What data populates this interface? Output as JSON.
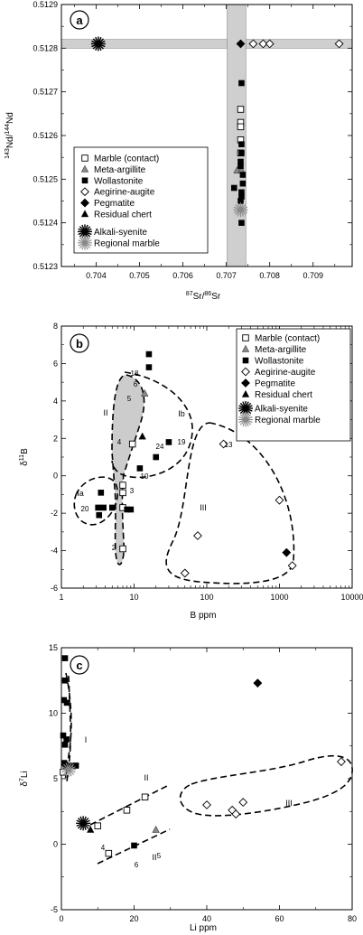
{
  "legend_labels": {
    "marble": "Marble (contact)",
    "meta_argillite": "Meta-argillite",
    "wollastonite": "Wollastonite",
    "aegirine_augite": "Aegirine-augite",
    "pegmatite": "Pegmatite",
    "residual_chert": "Residual chert",
    "alkali_syenite": "Alkali-syenite",
    "regional_marble": "Regional marble"
  },
  "chart_data": [
    {
      "type": "scatter",
      "panel": "a",
      "xlabel": "87Sr/86Sr",
      "ylabel": "143Nd/144Nd",
      "xlim": [
        0.7032,
        0.7099
      ],
      "ylim": [
        0.5123,
        0.5129
      ],
      "xticks": [
        "0.704",
        "0.705",
        "0.706",
        "0.707",
        "0.708",
        "0.709"
      ],
      "yticks": [
        "0.5123",
        "0.5124",
        "0.5125",
        "0.5126",
        "0.5127",
        "0.5128",
        "0.5129"
      ],
      "legend": "inside-left",
      "bands": [
        {
          "orientation": "horizontal",
          "from": 0.5128,
          "to": 0.51282
        },
        {
          "orientation": "vertical",
          "from": 0.70702,
          "to": 0.70745
        }
      ],
      "series": [
        {
          "name": "Marble (contact)",
          "marker": "open-square",
          "points": [
            [
              0.70733,
              0.51266
            ],
            [
              0.70733,
              0.51263
            ],
            [
              0.70733,
              0.51262
            ],
            [
              0.70733,
              0.51259
            ],
            [
              0.70733,
              0.51256
            ]
          ]
        },
        {
          "name": "Meta-argillite",
          "marker": "gray-triangle",
          "points": [
            [
              0.70725,
              0.51252
            ],
            [
              0.70735,
              0.51252
            ]
          ]
        },
        {
          "name": "Wollastonite",
          "marker": "filled-square",
          "points": [
            [
              0.70735,
              0.51272
            ],
            [
              0.70735,
              0.51258
            ],
            [
              0.70735,
              0.51256
            ],
            [
              0.70733,
              0.51254
            ],
            [
              0.70733,
              0.51253
            ],
            [
              0.70718,
              0.51248
            ],
            [
              0.70738,
              0.51251
            ],
            [
              0.70738,
              0.51249
            ],
            [
              0.70735,
              0.51247
            ],
            [
              0.70735,
              0.51246
            ],
            [
              0.70733,
              0.51245
            ],
            [
              0.70735,
              0.5124
            ]
          ]
        },
        {
          "name": "Aegirine-augite",
          "marker": "open-diamond",
          "points": [
            [
              0.70762,
              0.51281
            ],
            [
              0.70785,
              0.51281
            ],
            [
              0.708,
              0.51281
            ],
            [
              0.7096,
              0.51281
            ]
          ]
        },
        {
          "name": "Pegmatite",
          "marker": "filled-diamond",
          "points": [
            [
              0.70733,
              0.51281
            ]
          ]
        },
        {
          "name": "Alkali-syenite",
          "marker": "star",
          "points": [
            [
              0.70405,
              0.51281
            ]
          ]
        },
        {
          "name": "Regional marble",
          "marker": "gray-star",
          "points": [
            [
              0.70733,
              0.51243
            ]
          ]
        }
      ]
    },
    {
      "type": "scatter",
      "panel": "b",
      "xlabel": "B ppm",
      "ylabel": "δ11B",
      "xscale": "log",
      "xlim": [
        1,
        10000
      ],
      "ylim": [
        -6,
        8
      ],
      "xticks": [
        "1",
        "10",
        "100",
        "1000",
        "10000"
      ],
      "yticks": [
        "-6",
        "-4",
        "-2",
        "0",
        "2",
        "4",
        "6",
        "8"
      ],
      "legend": "top-right",
      "region_labels": [
        "Ia",
        "Ib",
        "II",
        "III"
      ],
      "point_labels": [
        "18",
        "6",
        "5",
        "4",
        "24",
        "19",
        "13",
        "10",
        "3",
        "20",
        "2"
      ],
      "series": [
        {
          "name": "Marble (contact)",
          "marker": "open-square",
          "points": [
            [
              9.5,
              1.7
            ],
            [
              7,
              -0.5
            ],
            [
              7,
              -0.9
            ],
            [
              7,
              -1.7
            ],
            [
              7,
              -3.9
            ]
          ]
        },
        {
          "name": "Meta-argillite",
          "marker": "gray-triangle",
          "points": [
            [
              14,
              4.4
            ]
          ]
        },
        {
          "name": "Wollastonite",
          "marker": "filled-square",
          "points": [
            [
              16,
              6.5
            ],
            [
              16,
              5.8
            ],
            [
              20,
              1.0
            ],
            [
              12,
              0.4
            ],
            [
              30,
              1.8
            ],
            [
              3.5,
              -0.9
            ],
            [
              3.8,
              -1.7
            ],
            [
              3.2,
              -1.7
            ],
            [
              5,
              -1.7
            ],
            [
              3.3,
              -2.1
            ],
            [
              8,
              -1.8
            ],
            [
              9,
              -1.8
            ]
          ]
        },
        {
          "name": "Aegirine-augite",
          "marker": "open-diamond",
          "points": [
            [
              170,
              1.7
            ],
            [
              1000,
              -1.3
            ],
            [
              75,
              -3.2
            ],
            [
              50,
              -5.2
            ],
            [
              1500,
              -4.8
            ]
          ]
        },
        {
          "name": "Pegmatite",
          "marker": "filled-diamond",
          "points": [
            [
              1250,
              -4.1
            ]
          ]
        },
        {
          "name": "Residual chert",
          "marker": "filled-triangle",
          "points": [
            [
              13,
              2.1
            ]
          ]
        }
      ]
    },
    {
      "type": "scatter",
      "panel": "c",
      "xlabel": "Li ppm",
      "ylabel": "δ7Li",
      "xlim": [
        0,
        80
      ],
      "ylim": [
        -5,
        15
      ],
      "xticks": [
        "0",
        "20",
        "40",
        "60",
        "80"
      ],
      "yticks": [
        "-5",
        "0",
        "5",
        "10",
        "15"
      ],
      "region_labels": [
        "I",
        "II",
        "II",
        "III"
      ],
      "point_labels": [
        "5",
        "4",
        "6"
      ],
      "series": [
        {
          "name": "Marble (contact)",
          "marker": "open-square",
          "points": [
            [
              10,
              1.4
            ],
            [
              18,
              2.6
            ],
            [
              23,
              3.6
            ],
            [
              13,
              -0.7
            ],
            [
              0.5,
              5.5
            ]
          ]
        },
        {
          "name": "Meta-argillite",
          "marker": "gray-triangle",
          "points": [
            [
              26,
              1.1
            ]
          ]
        },
        {
          "name": "Wollastonite",
          "marker": "filled-square",
          "points": [
            [
              1,
              14.2
            ],
            [
              1,
              12.5
            ],
            [
              0.7,
              11.0
            ],
            [
              1.5,
              10.8
            ],
            [
              0.5,
              8.3
            ],
            [
              1.4,
              8.0
            ],
            [
              1,
              7.6
            ],
            [
              0.8,
              6.2
            ],
            [
              1.2,
              6.0
            ],
            [
              2.3,
              6.0
            ],
            [
              4,
              6.0
            ],
            [
              20,
              -0.1
            ]
          ]
        },
        {
          "name": "Aegirine-augite",
          "marker": "open-diamond",
          "points": [
            [
              40,
              3.0
            ],
            [
              47,
              2.6
            ],
            [
              48,
              2.3
            ],
            [
              50,
              3.2
            ],
            [
              77,
              6.3
            ]
          ]
        },
        {
          "name": "Pegmatite",
          "marker": "filled-diamond",
          "points": [
            [
              54,
              12.3
            ]
          ]
        },
        {
          "name": "Residual chert",
          "marker": "filled-triangle",
          "points": [
            [
              8,
              1.1
            ]
          ]
        },
        {
          "name": "Alkali-syenite",
          "marker": "star",
          "points": [
            [
              6,
              1.6
            ]
          ]
        },
        {
          "name": "Regional marble",
          "marker": "gray-star",
          "points": [
            [
              2,
              5.7
            ]
          ]
        }
      ]
    }
  ]
}
